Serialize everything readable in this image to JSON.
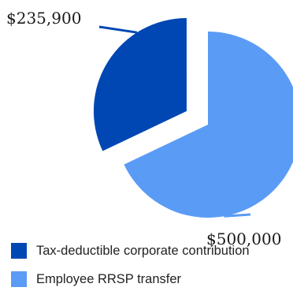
{
  "chart_data": {
    "type": "pie",
    "title": "",
    "slices": [
      {
        "name": "Tax-deductible corporate contribution",
        "value": 235900,
        "label": "$235,900",
        "color": "#0047b3"
      },
      {
        "name": "Employee RRSP transfer",
        "value": 500000,
        "label": "$500,000",
        "color": "#5a9bf5"
      }
    ],
    "legend_position": "bottom-left",
    "exploded": true
  }
}
